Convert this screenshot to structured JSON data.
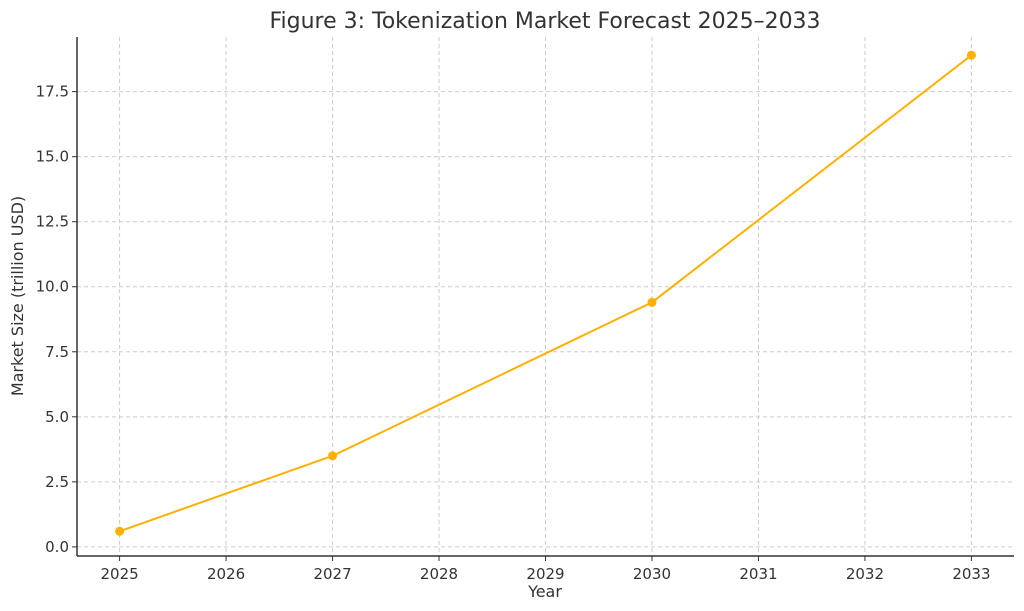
{
  "chart_data": {
    "type": "line",
    "title": "Figure 3: Tokenization Market Forecast 2025–2033",
    "xlabel": "Year",
    "ylabel": "Market Size (trillion USD)",
    "xlim": [
      2024.6,
      2033.4
    ],
    "ylim": [
      -0.35,
      19.6
    ],
    "x_ticks": [
      2025,
      2026,
      2027,
      2028,
      2029,
      2030,
      2031,
      2032,
      2033
    ],
    "y_ticks": [
      "0.0",
      "2.5",
      "5.0",
      "7.5",
      "10.0",
      "12.5",
      "15.0",
      "17.5"
    ],
    "grid": true,
    "series": [
      {
        "color": "#FFB000",
        "points": [
          {
            "x": 2025,
            "y": 0.6
          },
          {
            "x": 2027,
            "y": 3.5
          },
          {
            "x": 2030,
            "y": 9.4
          },
          {
            "x": 2033,
            "y": 18.9
          }
        ]
      }
    ]
  }
}
